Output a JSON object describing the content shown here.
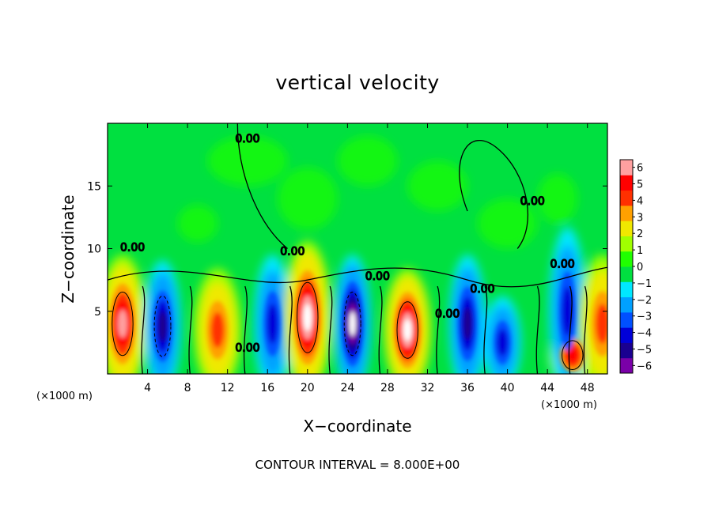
{
  "chart_data": {
    "type": "heatmap",
    "title": "vertical velocity",
    "xlabel": "X−coordinate",
    "ylabel": "Z−coordinate",
    "x_unit": "(×1000 m)",
    "y_unit": "(×1000 m)",
    "xlim": [
      0,
      50
    ],
    "ylim": [
      0,
      20
    ],
    "x_ticks": [
      4,
      8,
      12,
      16,
      20,
      24,
      28,
      32,
      36,
      40,
      44,
      48
    ],
    "y_ticks": [
      5,
      10,
      15
    ],
    "x_tick_labels": [
      "4",
      "8",
      "12",
      "16",
      "20",
      "24",
      "28",
      "32",
      "36",
      "40",
      "44",
      "48"
    ],
    "y_tick_labels": [
      "5",
      "10",
      "15"
    ],
    "contour_note": "CONTOUR INTERVAL = 8.000E+00",
    "contour_label": "0.00",
    "colorbar": {
      "min": -6,
      "max": 6,
      "levels": [
        -6,
        -5,
        -4,
        -3,
        -2,
        -1,
        0,
        1,
        2,
        3,
        4,
        5,
        6
      ],
      "labels": [
        "−6",
        "−5",
        "−4",
        "−3",
        "−2",
        "−1",
        "0",
        "1",
        "2",
        "3",
        "4",
        "5",
        "6"
      ],
      "colors": [
        "#7a00a8",
        "#1a0090",
        "#0000d8",
        "#0050ff",
        "#00a0ff",
        "#00e8ff",
        "#00e040",
        "#20ff00",
        "#a0ff00",
        "#f0e800",
        "#ffa000",
        "#ff3000",
        "#ff0000",
        "#ffa0a0"
      ]
    },
    "features": [
      {
        "x": 1.5,
        "z": 4.0,
        "sign": "up",
        "peak": 9
      },
      {
        "x": 5.5,
        "z": 3.8,
        "sign": "down",
        "peak": -8
      },
      {
        "x": 11.0,
        "z": 3.5,
        "sign": "up",
        "peak": 5
      },
      {
        "x": 16.5,
        "z": 4.0,
        "sign": "down",
        "peak": -6
      },
      {
        "x": 20.0,
        "z": 4.5,
        "sign": "up",
        "peak": 12
      },
      {
        "x": 24.5,
        "z": 4.0,
        "sign": "down",
        "peak": -10
      },
      {
        "x": 30.0,
        "z": 3.5,
        "sign": "up",
        "peak": 10
      },
      {
        "x": 36.0,
        "z": 4.0,
        "sign": "down",
        "peak": -7
      },
      {
        "x": 39.5,
        "z": 2.5,
        "sign": "down",
        "peak": -5
      },
      {
        "x": 46.5,
        "z": 1.5,
        "sign": "up",
        "peak": 8
      },
      {
        "x": 46.0,
        "z": 5.0,
        "sign": "down",
        "peak": -5
      },
      {
        "x": 49.5,
        "z": 4.0,
        "sign": "up",
        "peak": 6
      }
    ]
  }
}
